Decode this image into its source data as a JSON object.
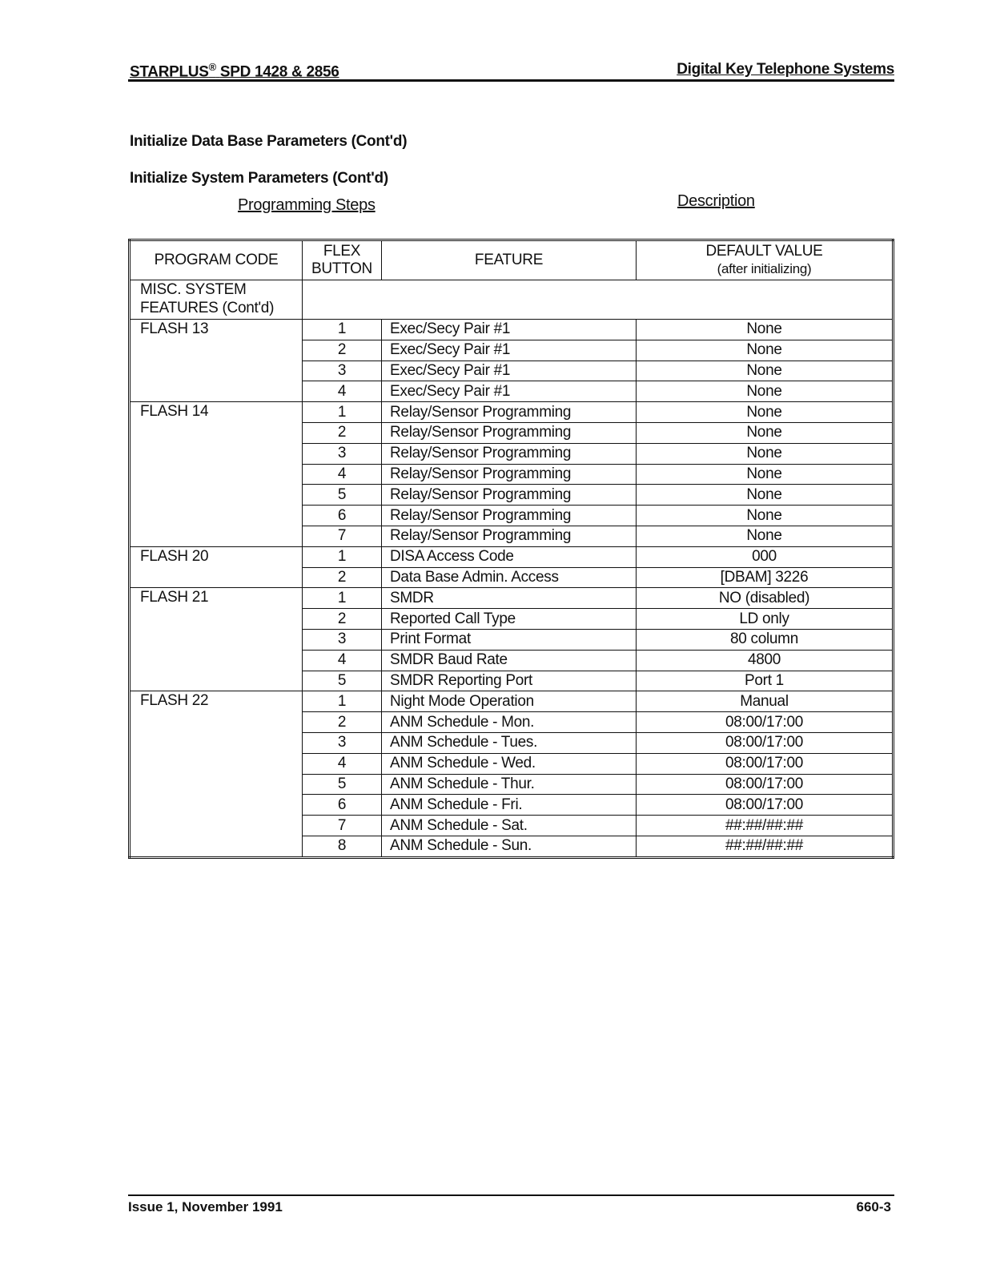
{
  "header": {
    "left_brand": "STARPLUS",
    "left_reg": "®",
    "left_model": "SPD 1428 & 2856",
    "right": "Digital Key Telephone Systems"
  },
  "title1": "Initialize Data Base Parameters (Cont'd)",
  "title2": "Initialize System Parameters (Cont'd)",
  "subhead_left": "Programming Steps",
  "subhead_right": "Description",
  "table": {
    "columns": {
      "code": "PROGRAM CODE",
      "button_1": "FLEX",
      "button_2": "BUTTON",
      "feature": "FEATURE",
      "value_1": "DEFAULT  VALUE",
      "value_2": "(after initializing)"
    },
    "section": "MISC. SYSTEM FEATURES (Cont'd)",
    "groups": [
      {
        "code": "FLASH 13",
        "rows": [
          {
            "button": "1",
            "feature": "Exec/Secy Pair #1",
            "value": "None"
          },
          {
            "button": "2",
            "feature": "Exec/Secy Pair #1",
            "value": "None"
          },
          {
            "button": "3",
            "feature": "Exec/Secy Pair #1",
            "value": "None"
          },
          {
            "button": "4",
            "feature": "Exec/Secy Pair #1",
            "value": "None"
          }
        ]
      },
      {
        "code": "FLASH 14",
        "rows": [
          {
            "button": "1",
            "feature": "Relay/Sensor Programming",
            "value": "None"
          },
          {
            "button": "2",
            "feature": "Relay/Sensor Programming",
            "value": "None"
          },
          {
            "button": "3",
            "feature": "Relay/Sensor Programming",
            "value": "None"
          },
          {
            "button": "4",
            "feature": "Relay/Sensor Programming",
            "value": "None"
          },
          {
            "button": "5",
            "feature": "Relay/Sensor Programming",
            "value": "None"
          },
          {
            "button": "6",
            "feature": "Relay/Sensor Programming",
            "value": "None"
          },
          {
            "button": "7",
            "feature": "Relay/Sensor Programming",
            "value": "None"
          }
        ]
      },
      {
        "code": "FLASH 20",
        "rows": [
          {
            "button": "1",
            "feature": "DISA Access Code",
            "value": "000"
          },
          {
            "button": "2",
            "feature": "Data Base Admin. Access",
            "value": "[DBAM] 3226"
          }
        ]
      },
      {
        "code": "FLASH 21",
        "rows": [
          {
            "button": "1",
            "feature": "SMDR",
            "value": "NO (disabled)"
          },
          {
            "button": "2",
            "feature": "Reported Call Type",
            "value": "LD only"
          },
          {
            "button": "3",
            "feature": "Print Format",
            "value": "80 column"
          },
          {
            "button": "4",
            "feature": "SMDR Baud Rate",
            "value": "4800"
          },
          {
            "button": "5",
            "feature": "SMDR Reporting Port",
            "value": "Port 1"
          }
        ]
      },
      {
        "code": "FLASH 22",
        "rows": [
          {
            "button": "1",
            "feature": "Night Mode Operation",
            "value": "Manual"
          },
          {
            "button": "2",
            "feature": "ANM Schedule - Mon.",
            "value": "08:00/17:00"
          },
          {
            "button": "3",
            "feature": "ANM Schedule - Tues.",
            "value": "08:00/17:00"
          },
          {
            "button": "4",
            "feature": "ANM Schedule - Wed.",
            "value": "08:00/17:00"
          },
          {
            "button": "5",
            "feature": "ANM Schedule - Thur.",
            "value": "08:00/17:00"
          },
          {
            "button": "6",
            "feature": "ANM Schedule - Fri.",
            "value": "08:00/17:00"
          },
          {
            "button": "7",
            "feature": "ANM Schedule - Sat.",
            "value": "##:##/##:##"
          },
          {
            "button": "8",
            "feature": "ANM Schedule - Sun.",
            "value": "##:##/##:##"
          }
        ]
      }
    ]
  },
  "footer": {
    "left": "Issue 1, November 1991",
    "right": "660-3"
  }
}
